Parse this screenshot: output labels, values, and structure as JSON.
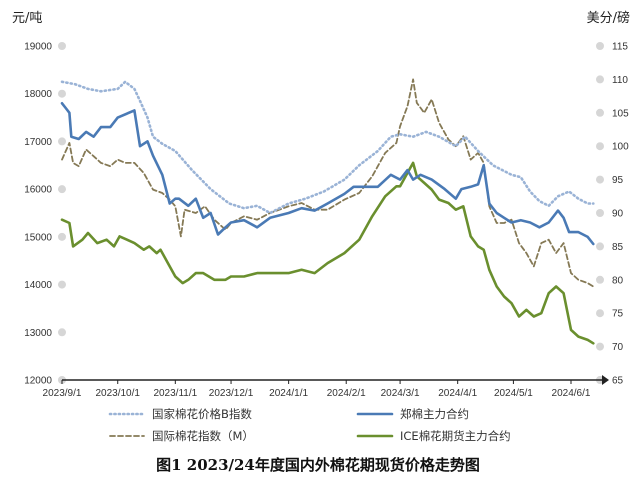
{
  "chart_data": {
    "type": "line",
    "title": "图1 2023/24年度国内外棉花期现货价格走势图",
    "left_unit": "元/吨",
    "right_unit": "美分/磅",
    "left_axis": {
      "min": 12000,
      "max": 19000,
      "ticks": [
        12000,
        13000,
        14000,
        15000,
        16000,
        17000,
        18000,
        19000
      ]
    },
    "right_axis": {
      "min": 65,
      "max": 115,
      "ticks": [
        65,
        70,
        75,
        80,
        85,
        90,
        95,
        100,
        105,
        110,
        115
      ]
    },
    "x_axis": {
      "start": "2023-09-01",
      "end": "2024-06-15",
      "labels": [
        {
          "date": "2023-09-01",
          "text": "2023/9/1"
        },
        {
          "date": "2023-10-01",
          "text": "2023/10/1"
        },
        {
          "date": "2023-11-01",
          "text": "2023/11/1"
        },
        {
          "date": "2023-12-01",
          "text": "2023/12/1"
        },
        {
          "date": "2024-01-01",
          "text": "2024/1/1"
        },
        {
          "date": "2024-02-01",
          "text": "2024/2/1"
        },
        {
          "date": "2024-03-01",
          "text": "2024/3/1"
        },
        {
          "date": "2024-04-01",
          "text": "2024/4/1"
        },
        {
          "date": "2024-05-01",
          "text": "2024/5/1"
        },
        {
          "date": "2024-06-01",
          "text": "2024/6/1"
        }
      ]
    },
    "grid": false,
    "legend_position": "bottom",
    "series": [
      {
        "name": "国家棉花价格B指数",
        "axis": "left",
        "style": "dotted",
        "color": "#9ab3d6",
        "points": [
          [
            "2023-09-01",
            18250
          ],
          [
            "2023-09-08",
            18200
          ],
          [
            "2023-09-15",
            18100
          ],
          [
            "2023-09-22",
            18050
          ],
          [
            "2023-10-01",
            18100
          ],
          [
            "2023-10-05",
            18250
          ],
          [
            "2023-10-10",
            18100
          ],
          [
            "2023-10-13",
            17850
          ],
          [
            "2023-10-17",
            17500
          ],
          [
            "2023-10-20",
            17100
          ],
          [
            "2023-10-25",
            16950
          ],
          [
            "2023-11-01",
            16800
          ],
          [
            "2023-11-10",
            16400
          ],
          [
            "2023-11-20",
            16000
          ],
          [
            "2023-11-30",
            15700
          ],
          [
            "2023-12-08",
            15600
          ],
          [
            "2023-12-15",
            15650
          ],
          [
            "2023-12-22",
            15500
          ],
          [
            "2024-01-01",
            15700
          ],
          [
            "2024-01-10",
            15800
          ],
          [
            "2024-01-20",
            15950
          ],
          [
            "2024-01-31",
            16200
          ],
          [
            "2024-02-08",
            16500
          ],
          [
            "2024-02-18",
            16800
          ],
          [
            "2024-02-25",
            17100
          ],
          [
            "2024-03-01",
            17150
          ],
          [
            "2024-03-08",
            17100
          ],
          [
            "2024-03-15",
            17200
          ],
          [
            "2024-03-22",
            17100
          ],
          [
            "2024-03-31",
            16900
          ],
          [
            "2024-04-05",
            17100
          ],
          [
            "2024-04-12",
            16800
          ],
          [
            "2024-04-20",
            16500
          ],
          [
            "2024-04-30",
            16300
          ],
          [
            "2024-05-05",
            16250
          ],
          [
            "2024-05-10",
            15950
          ],
          [
            "2024-05-15",
            15750
          ],
          [
            "2024-05-20",
            15650
          ],
          [
            "2024-05-25",
            15850
          ],
          [
            "2024-05-31",
            15950
          ],
          [
            "2024-06-05",
            15800
          ],
          [
            "2024-06-10",
            15700
          ],
          [
            "2024-06-13",
            15700
          ]
        ]
      },
      {
        "name": "郑棉主力合约",
        "axis": "left",
        "style": "solid",
        "color": "#4a7ab5",
        "points": [
          [
            "2023-09-01",
            17800
          ],
          [
            "2023-09-03",
            17700
          ],
          [
            "2023-09-05",
            17600
          ],
          [
            "2023-09-06",
            17100
          ],
          [
            "2023-09-10",
            17050
          ],
          [
            "2023-09-14",
            17200
          ],
          [
            "2023-09-18",
            17100
          ],
          [
            "2023-09-22",
            17300
          ],
          [
            "2023-09-27",
            17300
          ],
          [
            "2023-10-01",
            17500
          ],
          [
            "2023-10-10",
            17650
          ],
          [
            "2023-10-13",
            16900
          ],
          [
            "2023-10-17",
            17000
          ],
          [
            "2023-10-20",
            16700
          ],
          [
            "2023-10-25",
            16300
          ],
          [
            "2023-10-29",
            15700
          ],
          [
            "2023-11-01",
            15800
          ],
          [
            "2023-11-03",
            15800
          ],
          [
            "2023-11-08",
            15650
          ],
          [
            "2023-11-12",
            15800
          ],
          [
            "2023-11-16",
            15400
          ],
          [
            "2023-11-20",
            15500
          ],
          [
            "2023-11-24",
            15050
          ],
          [
            "2023-11-28",
            15200
          ],
          [
            "2023-12-01",
            15300
          ],
          [
            "2023-12-08",
            15350
          ],
          [
            "2023-12-15",
            15200
          ],
          [
            "2023-12-22",
            15400
          ],
          [
            "2024-01-01",
            15500
          ],
          [
            "2024-01-08",
            15600
          ],
          [
            "2024-01-15",
            15550
          ],
          [
            "2024-01-22",
            15700
          ],
          [
            "2024-01-31",
            15900
          ],
          [
            "2024-02-05",
            16050
          ],
          [
            "2024-02-18",
            16050
          ],
          [
            "2024-02-25",
            16300
          ],
          [
            "2024-03-01",
            16200
          ],
          [
            "2024-03-05",
            16400
          ],
          [
            "2024-03-08",
            16200
          ],
          [
            "2024-03-12",
            16300
          ],
          [
            "2024-03-18",
            16200
          ],
          [
            "2024-03-25",
            16000
          ],
          [
            "2024-03-31",
            15800
          ],
          [
            "2024-04-03",
            16000
          ],
          [
            "2024-04-08",
            16050
          ],
          [
            "2024-04-12",
            16100
          ],
          [
            "2024-04-15",
            16500
          ],
          [
            "2024-04-18",
            15700
          ],
          [
            "2024-04-22",
            15500
          ],
          [
            "2024-04-26",
            15400
          ],
          [
            "2024-04-30",
            15300
          ],
          [
            "2024-05-05",
            15350
          ],
          [
            "2024-05-10",
            15300
          ],
          [
            "2024-05-15",
            15200
          ],
          [
            "2024-05-20",
            15300
          ],
          [
            "2024-05-25",
            15550
          ],
          [
            "2024-05-28",
            15400
          ],
          [
            "2024-05-31",
            15100
          ],
          [
            "2024-06-05",
            15100
          ],
          [
            "2024-06-10",
            15000
          ],
          [
            "2024-06-13",
            14850
          ]
        ]
      },
      {
        "name": "国际棉花指数（M）",
        "axis": "right",
        "style": "dashed",
        "color": "#857955",
        "points": [
          [
            "2023-09-01",
            98
          ],
          [
            "2023-09-05",
            100.5
          ],
          [
            "2023-09-07",
            97.5
          ],
          [
            "2023-09-10",
            97
          ],
          [
            "2023-09-14",
            99.5
          ],
          [
            "2023-09-18",
            98.5
          ],
          [
            "2023-09-22",
            97.5
          ],
          [
            "2023-09-27",
            97
          ],
          [
            "2023-10-01",
            98
          ],
          [
            "2023-10-05",
            97.5
          ],
          [
            "2023-10-10",
            97.5
          ],
          [
            "2023-10-15",
            96
          ],
          [
            "2023-10-20",
            93.5
          ],
          [
            "2023-10-25",
            93
          ],
          [
            "2023-10-29",
            92
          ],
          [
            "2023-11-01",
            91
          ],
          [
            "2023-11-04",
            86.5
          ],
          [
            "2023-11-06",
            90.5
          ],
          [
            "2023-11-12",
            90
          ],
          [
            "2023-11-17",
            91
          ],
          [
            "2023-11-22",
            89
          ],
          [
            "2023-11-28",
            87.5
          ],
          [
            "2023-12-01",
            88.5
          ],
          [
            "2023-12-08",
            89.5
          ],
          [
            "2023-12-15",
            89
          ],
          [
            "2023-12-22",
            90
          ],
          [
            "2024-01-01",
            91
          ],
          [
            "2024-01-08",
            91.5
          ],
          [
            "2024-01-15",
            90.5
          ],
          [
            "2024-01-22",
            90.5
          ],
          [
            "2024-01-31",
            92
          ],
          [
            "2024-02-08",
            93
          ],
          [
            "2024-02-15",
            95.5
          ],
          [
            "2024-02-22",
            99
          ],
          [
            "2024-02-28",
            100.5
          ],
          [
            "2024-03-01",
            103
          ],
          [
            "2024-03-05",
            106
          ],
          [
            "2024-03-08",
            110
          ],
          [
            "2024-03-10",
            106.5
          ],
          [
            "2024-03-14",
            105
          ],
          [
            "2024-03-18",
            107
          ],
          [
            "2024-03-22",
            103.5
          ],
          [
            "2024-03-27",
            101
          ],
          [
            "2024-03-31",
            100
          ],
          [
            "2024-04-04",
            101.5
          ],
          [
            "2024-04-08",
            98
          ],
          [
            "2024-04-12",
            99
          ],
          [
            "2024-04-15",
            97.5
          ],
          [
            "2024-04-18",
            91
          ],
          [
            "2024-04-22",
            88.5
          ],
          [
            "2024-04-26",
            88.5
          ],
          [
            "2024-04-30",
            89
          ],
          [
            "2024-05-04",
            85.5
          ],
          [
            "2024-05-08",
            84
          ],
          [
            "2024-05-12",
            82
          ],
          [
            "2024-05-16",
            85.5
          ],
          [
            "2024-05-20",
            86
          ],
          [
            "2024-05-24",
            84
          ],
          [
            "2024-05-28",
            85.5
          ],
          [
            "2024-06-01",
            81
          ],
          [
            "2024-06-05",
            80
          ],
          [
            "2024-06-10",
            79.5
          ],
          [
            "2024-06-13",
            79
          ]
        ]
      },
      {
        "name": "ICE棉花期货主力合约",
        "axis": "right",
        "style": "solid",
        "color": "#6a8f2e",
        "points": [
          [
            "2023-09-01",
            89
          ],
          [
            "2023-09-05",
            88.5
          ],
          [
            "2023-09-07",
            85
          ],
          [
            "2023-09-12",
            86
          ],
          [
            "2023-09-15",
            87
          ],
          [
            "2023-09-20",
            85.5
          ],
          [
            "2023-09-25",
            86
          ],
          [
            "2023-09-29",
            85
          ],
          [
            "2023-10-02",
            86.5
          ],
          [
            "2023-10-06",
            86
          ],
          [
            "2023-10-10",
            85.5
          ],
          [
            "2023-10-15",
            84.5
          ],
          [
            "2023-10-18",
            85
          ],
          [
            "2023-10-22",
            84
          ],
          [
            "2023-10-24",
            84.5
          ],
          [
            "2023-10-28",
            82.5
          ],
          [
            "2023-11-01",
            80.5
          ],
          [
            "2023-11-05",
            79.5
          ],
          [
            "2023-11-08",
            80
          ],
          [
            "2023-11-12",
            81
          ],
          [
            "2023-11-16",
            81
          ],
          [
            "2023-11-22",
            80
          ],
          [
            "2023-11-28",
            80
          ],
          [
            "2023-12-01",
            80.5
          ],
          [
            "2023-12-08",
            80.5
          ],
          [
            "2023-12-15",
            81
          ],
          [
            "2023-12-22",
            81
          ],
          [
            "2024-01-01",
            81
          ],
          [
            "2024-01-08",
            81.5
          ],
          [
            "2024-01-15",
            81
          ],
          [
            "2024-01-22",
            82.5
          ],
          [
            "2024-01-31",
            84
          ],
          [
            "2024-02-08",
            86
          ],
          [
            "2024-02-15",
            89.5
          ],
          [
            "2024-02-22",
            92.5
          ],
          [
            "2024-02-28",
            94
          ],
          [
            "2024-03-01",
            94
          ],
          [
            "2024-03-05",
            96
          ],
          [
            "2024-03-08",
            97.5
          ],
          [
            "2024-03-10",
            95.5
          ],
          [
            "2024-03-14",
            94.5
          ],
          [
            "2024-03-18",
            93.5
          ],
          [
            "2024-03-22",
            92
          ],
          [
            "2024-03-27",
            91.5
          ],
          [
            "2024-03-31",
            90.5
          ],
          [
            "2024-04-04",
            91
          ],
          [
            "2024-04-08",
            86.5
          ],
          [
            "2024-04-12",
            85
          ],
          [
            "2024-04-15",
            84.5
          ],
          [
            "2024-04-18",
            81.5
          ],
          [
            "2024-04-22",
            79
          ],
          [
            "2024-04-26",
            77.5
          ],
          [
            "2024-04-30",
            76.5
          ],
          [
            "2024-05-04",
            74.5
          ],
          [
            "2024-05-08",
            75.5
          ],
          [
            "2024-05-12",
            74.5
          ],
          [
            "2024-05-16",
            75
          ],
          [
            "2024-05-20",
            78
          ],
          [
            "2024-05-24",
            79
          ],
          [
            "2024-05-28",
            78
          ],
          [
            "2024-06-01",
            72.5
          ],
          [
            "2024-06-05",
            71.5
          ],
          [
            "2024-06-10",
            71
          ],
          [
            "2024-06-13",
            70.5
          ]
        ]
      }
    ]
  }
}
